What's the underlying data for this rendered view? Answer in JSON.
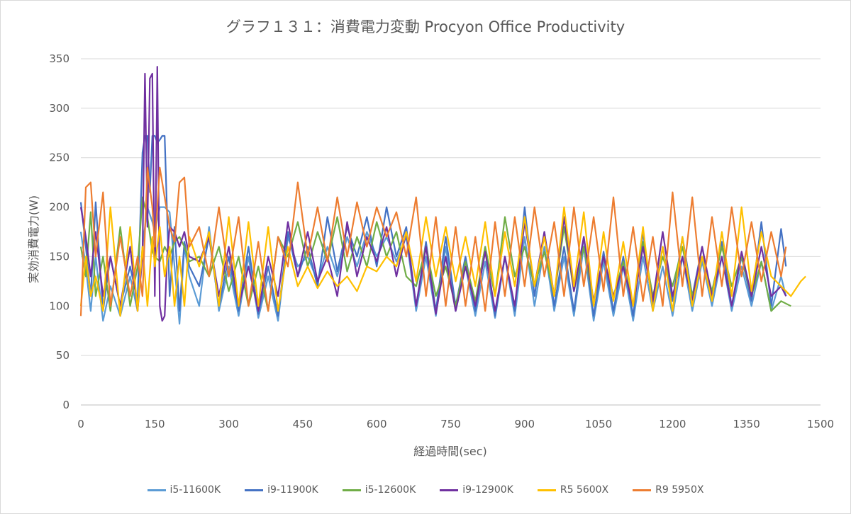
{
  "chart_data": {
    "type": "line",
    "title": "グラフ１３１：消費電力変動 Procyon Office Productivity",
    "xlabel": "経過時間(sec)",
    "ylabel": "実効消費電力(W)",
    "xlim": [
      0,
      1500
    ],
    "ylim": [
      0,
      350
    ],
    "xticks": [
      0,
      150,
      300,
      450,
      600,
      750,
      900,
      1050,
      1200,
      1350,
      1500
    ],
    "yticks": [
      0,
      50,
      100,
      150,
      200,
      250,
      300,
      350
    ],
    "grid": "horizontal",
    "legend_position": "bottom",
    "series": [
      {
        "name": "i5-11600K",
        "color": "#5b9bd5",
        "x": [
          0,
          10,
          20,
          30,
          45,
          60,
          80,
          100,
          115,
          125,
          135,
          145,
          150,
          160,
          170,
          180,
          190,
          200,
          210,
          220,
          240,
          260,
          280,
          300,
          320,
          340,
          360,
          380,
          400,
          420,
          440,
          460,
          480,
          500,
          520,
          540,
          560,
          580,
          600,
          620,
          640,
          660,
          680,
          700,
          720,
          740,
          760,
          780,
          800,
          820,
          840,
          860,
          880,
          900,
          920,
          940,
          960,
          980,
          1000,
          1020,
          1040,
          1060,
          1080,
          1100,
          1120,
          1140,
          1160,
          1180,
          1200,
          1220,
          1240,
          1260,
          1280,
          1300,
          1320,
          1340,
          1360,
          1380,
          1400,
          1420,
          1430
        ],
        "values": [
          175,
          140,
          95,
          150,
          85,
          120,
          90,
          130,
          95,
          160,
          200,
          185,
          175,
          200,
          200,
          195,
          140,
          82,
          160,
          130,
          100,
          180,
          95,
          140,
          90,
          150,
          88,
          130,
          85,
          170,
          140,
          150,
          125,
          160,
          130,
          170,
          140,
          175,
          150,
          170,
          145,
          170,
          95,
          150,
          90,
          160,
          95,
          140,
          90,
          145,
          88,
          150,
          90,
          170,
          100,
          160,
          95,
          150,
          90,
          160,
          85,
          145,
          90,
          140,
          85,
          150,
          95,
          140,
          90,
          150,
          95,
          145,
          100,
          150,
          95,
          140,
          100,
          145,
          95,
          130,
          110
        ]
      },
      {
        "name": "i9-11900K",
        "color": "#4472c4",
        "x": [
          0,
          10,
          20,
          30,
          45,
          60,
          80,
          100,
          115,
          125,
          130,
          135,
          140,
          145,
          150,
          155,
          160,
          165,
          170,
          180,
          190,
          200,
          210,
          220,
          240,
          260,
          280,
          300,
          320,
          340,
          360,
          380,
          400,
          420,
          440,
          460,
          480,
          500,
          520,
          540,
          560,
          580,
          600,
          620,
          640,
          660,
          680,
          700,
          720,
          740,
          760,
          780,
          800,
          820,
          840,
          860,
          880,
          900,
          920,
          940,
          960,
          980,
          1000,
          1020,
          1040,
          1060,
          1080,
          1100,
          1120,
          1140,
          1160,
          1180,
          1200,
          1220,
          1240,
          1260,
          1280,
          1300,
          1320,
          1340,
          1360,
          1380,
          1400,
          1420,
          1430
        ],
        "values": [
          205,
          160,
          110,
          205,
          95,
          150,
          100,
          140,
          105,
          255,
          272,
          272,
          215,
          272,
          272,
          265,
          268,
          272,
          272,
          110,
          180,
          95,
          165,
          140,
          120,
          170,
          100,
          150,
          95,
          160,
          92,
          140,
          90,
          175,
          130,
          160,
          120,
          190,
          135,
          180,
          150,
          190,
          140,
          200,
          150,
          180,
          100,
          165,
          95,
          170,
          100,
          150,
          95,
          160,
          90,
          150,
          95,
          200,
          110,
          175,
          100,
          160,
          95,
          170,
          90,
          155,
          95,
          150,
          90,
          175,
          100,
          160,
          105,
          170,
          110,
          160,
          105,
          165,
          100,
          150,
          105,
          185,
          100,
          178,
          140
        ]
      },
      {
        "name": "i5-12600K",
        "color": "#70ad47",
        "x": [
          0,
          10,
          20,
          30,
          45,
          60,
          80,
          100,
          115,
          125,
          135,
          145,
          150,
          160,
          170,
          180,
          190,
          200,
          210,
          220,
          240,
          260,
          280,
          300,
          320,
          340,
          360,
          380,
          400,
          420,
          440,
          460,
          480,
          500,
          520,
          540,
          560,
          580,
          600,
          620,
          640,
          660,
          680,
          700,
          720,
          740,
          760,
          780,
          800,
          820,
          840,
          860,
          880,
          900,
          920,
          940,
          960,
          980,
          1000,
          1020,
          1040,
          1060,
          1080,
          1100,
          1120,
          1140,
          1160,
          1180,
          1200,
          1220,
          1240,
          1260,
          1280,
          1300,
          1320,
          1340,
          1360,
          1380,
          1400,
          1420,
          1440
        ],
        "values": [
          160,
          130,
          195,
          110,
          150,
          95,
          180,
          100,
          140,
          210,
          190,
          155,
          150,
          145,
          160,
          150,
          165,
          170,
          160,
          145,
          150,
          130,
          160,
          115,
          150,
          100,
          140,
          95,
          170,
          150,
          185,
          140,
          175,
          145,
          190,
          135,
          170,
          140,
          185,
          150,
          175,
          130,
          120,
          160,
          110,
          140,
          100,
          145,
          105,
          160,
          110,
          190,
          130,
          160,
          120,
          155,
          110,
          180,
          115,
          160,
          105,
          150,
          110,
          145,
          100,
          165,
          110,
          150,
          120,
          160,
          110,
          150,
          115,
          160,
          120,
          150,
          110,
          145,
          95,
          105,
          100
        ]
      },
      {
        "name": "i9-12900K",
        "color": "#7030a0",
        "x": [
          0,
          10,
          20,
          30,
          45,
          60,
          80,
          100,
          115,
          125,
          130,
          135,
          140,
          145,
          150,
          155,
          160,
          165,
          170,
          175,
          180,
          190,
          200,
          210,
          220,
          240,
          260,
          280,
          300,
          320,
          340,
          360,
          380,
          400,
          420,
          440,
          460,
          480,
          500,
          520,
          540,
          560,
          580,
          600,
          620,
          640,
          660,
          680,
          700,
          720,
          740,
          760,
          780,
          800,
          820,
          840,
          860,
          880,
          900,
          920,
          940,
          960,
          980,
          1000,
          1020,
          1040,
          1060,
          1080,
          1100,
          1120,
          1140,
          1160,
          1180,
          1200,
          1220,
          1240,
          1260,
          1280,
          1300,
          1320,
          1340,
          1360,
          1380,
          1400,
          1420,
          1430
        ],
        "values": [
          200,
          170,
          130,
          175,
          110,
          150,
          100,
          160,
          95,
          150,
          335,
          180,
          330,
          335,
          110,
          342,
          100,
          85,
          90,
          150,
          180,
          175,
          160,
          175,
          150,
          145,
          170,
          110,
          160,
          100,
          140,
          95,
          150,
          110,
          185,
          130,
          175,
          125,
          150,
          110,
          185,
          130,
          170,
          145,
          180,
          130,
          175,
          100,
          160,
          92,
          150,
          95,
          140,
          100,
          155,
          95,
          150,
          100,
          185,
          120,
          175,
          110,
          190,
          115,
          170,
          105,
          150,
          110,
          140,
          100,
          160,
          105,
          175,
          110,
          150,
          105,
          160,
          110,
          150,
          100,
          155,
          110,
          160,
          110,
          120,
          110
        ]
      },
      {
        "name": "R5 5600X",
        "color": "#ffc000",
        "x": [
          0,
          10,
          20,
          30,
          45,
          60,
          80,
          100,
          115,
          125,
          135,
          145,
          150,
          160,
          170,
          180,
          190,
          200,
          210,
          220,
          240,
          260,
          280,
          300,
          320,
          340,
          360,
          380,
          400,
          420,
          440,
          460,
          480,
          500,
          520,
          540,
          560,
          580,
          600,
          620,
          640,
          660,
          680,
          700,
          720,
          740,
          760,
          780,
          800,
          820,
          840,
          860,
          880,
          900,
          920,
          940,
          960,
          980,
          1000,
          1020,
          1040,
          1060,
          1080,
          1100,
          1120,
          1140,
          1160,
          1180,
          1200,
          1220,
          1240,
          1260,
          1280,
          1300,
          1320,
          1340,
          1360,
          1380,
          1400,
          1420,
          1440,
          1460,
          1470
        ],
        "values": [
          100,
          150,
          110,
          130,
          95,
          200,
          90,
          180,
          95,
          160,
          100,
          170,
          140,
          180,
          130,
          160,
          100,
          150,
          100,
          170,
          140,
          175,
          100,
          190,
          100,
          185,
          100,
          180,
          95,
          160,
          120,
          140,
          118,
          135,
          120,
          130,
          115,
          140,
          135,
          150,
          140,
          175,
          125,
          190,
          130,
          180,
          125,
          170,
          120,
          185,
          110,
          175,
          120,
          190,
          120,
          170,
          110,
          200,
          120,
          195,
          100,
          175,
          105,
          165,
          100,
          180,
          95,
          160,
          95,
          170,
          100,
          150,
          105,
          175,
          110,
          200,
          115,
          175,
          130,
          120,
          110,
          125,
          130
        ]
      },
      {
        "name": "R9 5950X",
        "color": "#ed7d31",
        "x": [
          0,
          10,
          20,
          30,
          45,
          60,
          80,
          100,
          115,
          125,
          135,
          145,
          150,
          160,
          170,
          180,
          190,
          200,
          210,
          220,
          240,
          260,
          280,
          300,
          320,
          340,
          360,
          380,
          400,
          420,
          440,
          460,
          480,
          500,
          520,
          540,
          560,
          580,
          600,
          620,
          640,
          660,
          680,
          700,
          720,
          740,
          760,
          780,
          800,
          820,
          840,
          860,
          880,
          900,
          920,
          940,
          960,
          980,
          1000,
          1020,
          1040,
          1060,
          1080,
          1100,
          1120,
          1140,
          1160,
          1180,
          1200,
          1220,
          1240,
          1260,
          1280,
          1300,
          1320,
          1340,
          1360,
          1380,
          1400,
          1420,
          1430
        ],
        "values": [
          90,
          220,
          225,
          150,
          215,
          100,
          170,
          110,
          150,
          110,
          240,
          200,
          160,
          240,
          210,
          180,
          165,
          225,
          230,
          160,
          180,
          130,
          200,
          130,
          190,
          100,
          165,
          95,
          170,
          140,
          225,
          150,
          200,
          145,
          210,
          150,
          205,
          160,
          200,
          170,
          195,
          150,
          210,
          110,
          190,
          100,
          180,
          100,
          170,
          95,
          185,
          110,
          190,
          120,
          200,
          130,
          185,
          110,
          200,
          120,
          190,
          115,
          210,
          110,
          180,
          105,
          170,
          100,
          215,
          120,
          210,
          110,
          190,
          120,
          200,
          130,
          185,
          125,
          175,
          130,
          160
        ]
      }
    ]
  }
}
